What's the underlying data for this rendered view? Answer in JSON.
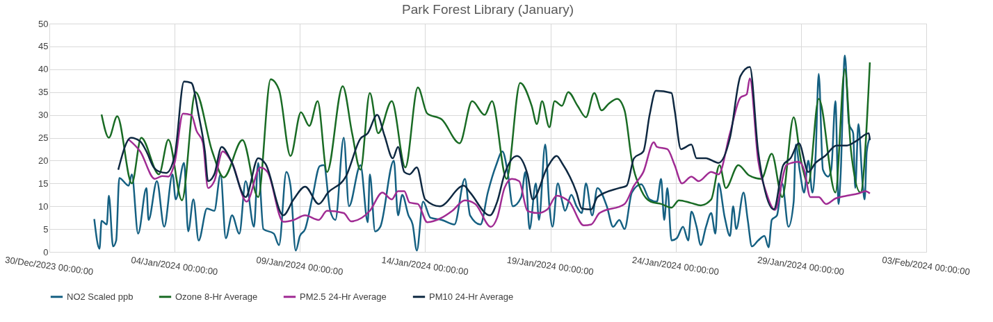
{
  "chart_data": {
    "type": "line",
    "title": "Park Forest Library (January)",
    "xlim": [
      "2023-12-30T00:00",
      "2024-02-03T00:00"
    ],
    "xticks": [
      {
        "value": "2023-12-30T00:00",
        "label": "30/Dec/2023 00:00:00"
      },
      {
        "value": "2024-01-04T00:00",
        "label": "04/Jan/2024 00:00:00"
      },
      {
        "value": "2024-01-09T00:00",
        "label": "09/Jan/2024 00:00:00"
      },
      {
        "value": "2024-01-14T00:00",
        "label": "14/Jan/2024 00:00:00"
      },
      {
        "value": "2024-01-19T00:00",
        "label": "19/Jan/2024 00:00:00"
      },
      {
        "value": "2024-01-24T00:00",
        "label": "24/Jan/2024 00:00:00"
      },
      {
        "value": "2024-01-29T00:00",
        "label": "29/Jan/2024 00:00:00"
      },
      {
        "value": "2024-02-03T00:00",
        "label": "03/Feb/2024 00:00:00"
      }
    ],
    "ylim": [
      0,
      50
    ],
    "yticks": [
      0,
      5,
      10,
      15,
      20,
      25,
      30,
      35,
      40,
      45,
      50
    ],
    "grid": true,
    "legend": "bottom",
    "marker": "none",
    "line_style": "solid",
    "series": [
      {
        "name": "NO2 Scaled ppb",
        "color": "#156082",
        "x": [
          "2023-12-31T19:00",
          "2024-01-01T00:00",
          "2024-01-01T02:00",
          "2024-01-01T07:00",
          "2024-01-01T09:00",
          "2024-01-01T13:00",
          "2024-01-01T16:00",
          "2024-01-01T19:00",
          "2024-01-02T04:00",
          "2024-01-02T07:00",
          "2024-01-02T13:00",
          "2024-01-02T21:00",
          "2024-01-02T23:00",
          "2024-01-03T07:00",
          "2024-01-03T14:00",
          "2024-01-03T22:00",
          "2024-01-04T01:00",
          "2024-01-04T09:00",
          "2024-01-04T13:00",
          "2024-01-04T18:00",
          "2024-01-04T23:00",
          "2024-01-05T07:00",
          "2024-01-05T14:00",
          "2024-01-05T20:00",
          "2024-01-06T01:00",
          "2024-01-06T07:00",
          "2024-01-06T14:00",
          "2024-01-06T20:00",
          "2024-01-07T04:00",
          "2024-01-07T08:00",
          "2024-01-07T13:00",
          "2024-01-07T23:00",
          "2024-01-08T04:00",
          "2024-01-08T11:00",
          "2024-01-08T15:00",
          "2024-01-08T20:00",
          "2024-01-09T00:00",
          "2024-01-09T05:00",
          "2024-01-09T12:00",
          "2024-01-09T19:00",
          "2024-01-09T23:00",
          "2024-01-10T05:00",
          "2024-01-10T10:00",
          "2024-01-10T18:00",
          "2024-01-10T23:00",
          "2024-01-11T10:00",
          "2024-01-11T17:00",
          "2024-01-11T19:00",
          "2024-01-12T00:00",
          "2024-01-12T05:00",
          "2024-01-12T18:00",
          "2024-01-12T22:00",
          "2024-01-13T02:00",
          "2024-01-13T08:00",
          "2024-01-13T12:00",
          "2024-01-13T16:00",
          "2024-01-13T22:00",
          "2024-01-14T05:00",
          "2024-01-14T16:00",
          "2024-01-15T04:00",
          "2024-01-15T14:00",
          "2024-01-15T19:00",
          "2024-01-16T05:00",
          "2024-01-16T12:00",
          "2024-01-16T20:00",
          "2024-01-17T02:00",
          "2024-01-17T07:00",
          "2024-01-17T12:00",
          "2024-01-17T20:00",
          "2024-01-18T00:00",
          "2024-01-18T04:00",
          "2024-01-18T10:00",
          "2024-01-18T13:00",
          "2024-01-18T19:00",
          "2024-01-18T23:00",
          "2024-01-19T02:00",
          "2024-01-19T07:00",
          "2024-01-19T11:00",
          "2024-01-19T14:00",
          "2024-01-19T20:00",
          "2024-01-20T01:00",
          "2024-01-20T06:00",
          "2024-01-20T10:00",
          "2024-01-20T16:00",
          "2024-01-20T21:00",
          "2024-01-21T06:00",
          "2024-01-21T12:00",
          "2024-01-21T18:00",
          "2024-01-21T23:00",
          "2024-01-22T06:00",
          "2024-01-22T15:00",
          "2024-01-22T23:00",
          "2024-01-23T06:00",
          "2024-01-23T10:00",
          "2024-01-23T13:00",
          "2024-01-23T16:00",
          "2024-01-23T20:00",
          "2024-01-24T01:00",
          "2024-01-24T07:00",
          "2024-01-24T12:00",
          "2024-01-24T15:00",
          "2024-01-24T20:00",
          "2024-01-25T00:00",
          "2024-01-25T05:00",
          "2024-01-25T10:00",
          "2024-01-25T14:00",
          "2024-01-25T17:00",
          "2024-01-25T23:00",
          "2024-01-26T04:00",
          "2024-01-26T07:00",
          "2024-01-26T10:00",
          "2024-01-26T17:00",
          "2024-01-26T21:00",
          "2024-01-27T01:00",
          "2024-01-27T07:00",
          "2024-01-27T13:00",
          "2024-01-27T17:00",
          "2024-01-27T20:00",
          "2024-01-28T01:00",
          "2024-01-28T06:00",
          "2024-01-28T12:00",
          "2024-01-28T17:00",
          "2024-01-28T19:00",
          "2024-01-28T23:00",
          "2024-01-29T03:00",
          "2024-01-29T07:00",
          "2024-01-29T11:00",
          "2024-01-29T14:00",
          "2024-01-29T17:00",
          "2024-01-29T21:00",
          "2024-01-30T02:00",
          "2024-01-30T05:00",
          "2024-01-30T09:00",
          "2024-01-30T12:00",
          "2024-01-30T14:00",
          "2024-01-30T18:00",
          "2024-01-30T22:00",
          "2024-01-31T02:00",
          "2024-01-31T04:00",
          "2024-01-31T07:00",
          "2024-01-31T11:00",
          "2024-01-31T13:00",
          "2024-01-31T15:00",
          "2024-01-31T18:00"
        ],
        "values": [
          7.2,
          0.7,
          6.8,
          6,
          12.3,
          1.2,
          2.5,
          16.2,
          14.5,
          17,
          4,
          14,
          7,
          15.5,
          5.5,
          17,
          11.5,
          19.5,
          4.5,
          11.5,
          2.5,
          9.5,
          9,
          17,
          3,
          8,
          4,
          15.5,
          5.5,
          19.5,
          5,
          4,
          1.5,
          17.5,
          14.5,
          0.3,
          3.5,
          5,
          12,
          18.8,
          19,
          9,
          7,
          25,
          10,
          19,
          6.5,
          17,
          4.5,
          5.5,
          20,
          8,
          12.5,
          8,
          6,
          0.3,
          11,
          7.5,
          7,
          6,
          16,
          8,
          6,
          13,
          19,
          22,
          17.5,
          10,
          12,
          17.5,
          5,
          15,
          7,
          23.5,
          10,
          5.5,
          15,
          11.3,
          9,
          12.5,
          10,
          8.5,
          15,
          8,
          14,
          10,
          5.5,
          7,
          5,
          13,
          14.8,
          11.5,
          11,
          16,
          7,
          14,
          2.5,
          3,
          5.5,
          2.5,
          8.8,
          5.5,
          1.5,
          5.5,
          8.5,
          4,
          15,
          7.5,
          3.5,
          10,
          5,
          13,
          7,
          1.2,
          2.5,
          3.5,
          1,
          7,
          8,
          15,
          5.5,
          11,
          23.5,
          17.5,
          13,
          20,
          13,
          21,
          39,
          18,
          16.5,
          18,
          33,
          10.5,
          17,
          43,
          28,
          26,
          14,
          28,
          15,
          11.5,
          22,
          25
        ]
      },
      {
        "name": "Ozone 8-Hr Average",
        "color": "#196b24",
        "x": [
          "2024-01-01T02:00",
          "2024-01-01T09:00",
          "2024-01-01T17:00",
          "2024-01-02T07:00",
          "2024-01-02T16:00",
          "2024-01-03T09:00",
          "2024-01-03T18:00",
          "2024-01-04T07:00",
          "2024-01-04T20:00",
          "2024-01-05T12:00",
          "2024-01-05T23:00",
          "2024-01-06T17:00",
          "2024-01-07T08:00",
          "2024-01-07T20:00",
          "2024-01-08T04:00",
          "2024-01-08T15:00",
          "2024-01-09T01:00",
          "2024-01-09T09:00",
          "2024-01-09T17:00",
          "2024-01-10T02:00",
          "2024-01-10T17:00",
          "2024-01-11T02:00",
          "2024-01-11T10:00",
          "2024-01-11T19:00",
          "2024-01-12T03:00",
          "2024-01-12T16:00",
          "2024-01-13T05:00",
          "2024-01-13T17:00",
          "2024-01-14T02:00",
          "2024-01-14T16:00",
          "2024-01-15T09:00",
          "2024-01-15T21:00",
          "2024-01-16T09:00",
          "2024-01-16T16:00",
          "2024-01-17T06:00",
          "2024-01-17T19:00",
          "2024-01-18T06:00",
          "2024-01-18T11:00",
          "2024-01-18T16:00",
          "2024-01-18T23:00",
          "2024-01-19T04:00",
          "2024-01-19T11:00",
          "2024-01-19T17:00",
          "2024-01-20T02:00",
          "2024-01-20T10:00",
          "2024-01-20T18:00",
          "2024-01-21T01:00",
          "2024-01-21T08:00",
          "2024-01-21T16:00",
          "2024-01-21T23:00",
          "2024-01-22T06:00",
          "2024-01-22T15:00",
          "2024-01-23T00:00",
          "2024-01-23T10:00",
          "2024-01-23T20:00",
          "2024-01-24T03:00",
          "2024-01-24T15:00",
          "2024-01-25T00:00",
          "2024-01-25T10:00",
          "2024-01-25T18:00",
          "2024-01-26T00:00",
          "2024-01-26T12:00",
          "2024-01-26T22:00",
          "2024-01-27T10:00",
          "2024-01-27T20:00",
          "2024-01-28T06:00",
          "2024-01-28T17:00",
          "2024-01-29T00:00",
          "2024-01-29T07:00",
          "2024-01-29T17:00",
          "2024-01-30T09:00",
          "2024-01-30T18:00",
          "2024-01-31T00:00",
          "2024-01-31T09:00",
          "2024-01-31T18:00"
        ],
        "values": [
          30.1,
          25,
          29.7,
          15,
          25,
          17,
          24.6,
          11.3,
          35,
          22,
          16.3,
          24.5,
          12,
          37.8,
          35.5,
          21,
          30.6,
          27.6,
          33,
          17.5,
          36.3,
          26,
          18,
          34.8,
          26,
          33,
          18.5,
          36,
          30.3,
          29,
          23.8,
          33,
          30,
          33,
          16,
          37,
          32,
          28,
          33,
          27.3,
          33,
          32,
          35,
          32,
          29.5,
          34.8,
          31,
          32.5,
          33.5,
          31,
          20,
          13.5,
          11,
          10.5,
          9.7,
          11.3,
          10.7,
          10.2,
          11.5,
          19,
          14,
          19,
          16.8,
          16,
          21.5,
          12,
          29.5,
          20,
          15,
          33.5,
          13,
          40,
          22,
          13,
          41.5
        ]
      },
      {
        "name": "PM2.5 24-Hr Average",
        "color": "#a02b93",
        "x": [
          "2024-01-02T04:00",
          "2024-01-02T15:00",
          "2024-01-03T05:00",
          "2024-01-03T12:00",
          "2024-01-03T18:00",
          "2024-01-04T00:00",
          "2024-01-04T08:00",
          "2024-01-04T16:00",
          "2024-01-04T21:00",
          "2024-01-05T03:00",
          "2024-01-05T08:00",
          "2024-01-05T14:00",
          "2024-01-05T22:00",
          "2024-01-06T07:00",
          "2024-01-06T21:00",
          "2024-01-07T10:00",
          "2024-01-07T17:00",
          "2024-01-08T08:00",
          "2024-01-08T18:00",
          "2024-01-09T05:00",
          "2024-01-09T18:00",
          "2024-01-10T02:00",
          "2024-01-10T18:00",
          "2024-01-11T01:00",
          "2024-01-11T19:00",
          "2024-01-12T07:00",
          "2024-01-12T16:00",
          "2024-01-12T22:00",
          "2024-01-13T04:00",
          "2024-01-13T09:00",
          "2024-01-13T17:00",
          "2024-01-14T02:00",
          "2024-01-14T16:00",
          "2024-01-15T02:00",
          "2024-01-15T14:00",
          "2024-01-16T00:00",
          "2024-01-16T15:00",
          "2024-01-16T21:00",
          "2024-01-17T04:00",
          "2024-01-17T11:00",
          "2024-01-17T18:00",
          "2024-01-18T02:00",
          "2024-01-18T12:00",
          "2024-01-18T21:00",
          "2024-01-19T06:00",
          "2024-01-19T13:00",
          "2024-01-19T18:00",
          "2024-01-20T08:00",
          "2024-01-20T15:00",
          "2024-01-20T23:00",
          "2024-01-21T23:00",
          "2024-01-22T08:00",
          "2024-01-22T17:00",
          "2024-01-23T03:00",
          "2024-01-23T06:00",
          "2024-01-23T16:00",
          "2024-01-23T23:00",
          "2024-01-24T06:00",
          "2024-01-24T15:00",
          "2024-01-24T22:00",
          "2024-01-25T10:00",
          "2024-01-25T17:00",
          "2024-01-26T04:00",
          "2024-01-26T14:00",
          "2024-01-26T20:00",
          "2024-01-26T23:00",
          "2024-01-27T07:00",
          "2024-01-27T14:00",
          "2024-01-27T23:00",
          "2024-01-28T10:00",
          "2024-01-28T15:00",
          "2024-01-28T22:00",
          "2024-01-29T03:00",
          "2024-01-29T09:00",
          "2024-01-29T17:00",
          "2024-01-30T00:00",
          "2024-01-30T09:00",
          "2024-01-30T20:00",
          "2024-01-31T07:00",
          "2024-01-31T14:00",
          "2024-01-31T18:00"
        ],
        "values": [
          24.6,
          22,
          16,
          16.6,
          16.5,
          19.5,
          30.3,
          30,
          26.5,
          24,
          14,
          15.5,
          22,
          19.5,
          11,
          18.5,
          17.5,
          6.6,
          7,
          8,
          7,
          9,
          8.5,
          6.7,
          9,
          13,
          11.5,
          13.3,
          13.3,
          10.8,
          10.5,
          6.5,
          7.5,
          9,
          11.3,
          10.5,
          5.5,
          7.5,
          14,
          16,
          15.5,
          9,
          8.5,
          9.3,
          12.3,
          11.8,
          11,
          5.8,
          6,
          8.5,
          10.5,
          14.5,
          17.5,
          24,
          23,
          22.5,
          19,
          15,
          16.5,
          15.5,
          17.5,
          17,
          26,
          33.8,
          34.5,
          38,
          20,
          13.5,
          9.2,
          19,
          19.5,
          19.7,
          18,
          12,
          12,
          10.5,
          11.7,
          12.3,
          12.8,
          13.3,
          12.8
        ]
      },
      {
        "name": "PM10 24-Hr Average",
        "color": "#0e2841",
        "x": [
          "2024-01-01T18:00",
          "2024-01-02T06:00",
          "2024-01-02T15:00",
          "2024-01-02T21:00",
          "2024-01-03T04:00",
          "2024-01-03T09:00",
          "2024-01-03T16:00",
          "2024-01-04T00:00",
          "2024-01-04T09:00",
          "2024-01-04T16:00",
          "2024-01-04T23:00",
          "2024-01-05T05:00",
          "2024-01-05T08:00",
          "2024-01-05T14:00",
          "2024-01-05T21:00",
          "2024-01-06T06:00",
          "2024-01-06T20:00",
          "2024-01-07T08:00",
          "2024-01-07T15:00",
          "2024-01-08T08:00",
          "2024-01-08T18:00",
          "2024-01-09T05:00",
          "2024-01-09T18:00",
          "2024-01-10T03:00",
          "2024-01-10T20:00",
          "2024-01-11T10:00",
          "2024-01-11T17:00",
          "2024-01-12T02:00",
          "2024-01-12T09:00",
          "2024-01-12T17:00",
          "2024-01-12T22:00",
          "2024-01-13T04:00",
          "2024-01-13T09:00",
          "2024-01-13T16:00",
          "2024-01-14T00:00",
          "2024-01-14T14:00",
          "2024-01-15T13:00",
          "2024-01-15T19:00",
          "2024-01-16T14:00",
          "2024-01-16T21:00",
          "2024-01-17T04:00",
          "2024-01-17T16:00",
          "2024-01-18T02:00",
          "2024-01-18T07:00",
          "2024-01-18T21:00",
          "2024-01-19T06:00",
          "2024-01-19T11:00",
          "2024-01-20T01:00",
          "2024-01-20T06:00",
          "2024-01-20T15:00",
          "2024-01-20T21:00",
          "2024-01-21T18:00",
          "2024-01-22T01:00",
          "2024-01-22T08:00",
          "2024-01-22T17:00",
          "2024-01-22T23:00",
          "2024-01-23T05:00",
          "2024-01-23T20:00",
          "2024-01-23T23:00",
          "2024-01-24T05:00",
          "2024-01-24T15:00",
          "2024-01-24T20:00",
          "2024-01-25T05:00",
          "2024-01-25T17:00",
          "2024-01-26T04:00",
          "2024-01-26T14:00",
          "2024-01-26T23:00",
          "2024-01-27T07:00",
          "2024-01-27T22:00",
          "2024-01-28T07:00",
          "2024-01-28T14:00",
          "2024-01-28T22:00",
          "2024-01-29T07:00",
          "2024-01-29T14:00",
          "2024-01-29T23:00",
          "2024-01-30T10:00",
          "2024-01-30T20:00",
          "2024-01-31T05:00",
          "2024-01-31T17:00",
          "2024-01-31T18:00"
        ],
        "values": [
          18,
          25,
          24.2,
          22,
          18.5,
          17.6,
          17.3,
          21,
          37.3,
          37,
          30,
          22,
          15.5,
          17,
          23,
          20,
          12,
          20.5,
          19.3,
          8,
          11.5,
          14.3,
          10.5,
          13,
          16.5,
          24.8,
          26,
          30,
          25.5,
          20.5,
          23,
          17.5,
          17,
          18.5,
          11.5,
          10,
          14.5,
          13,
          8,
          11,
          17,
          21,
          17,
          11.5,
          18.5,
          21,
          19.5,
          13,
          9.5,
          9.3,
          12,
          14,
          14.5,
          20.5,
          22,
          30,
          35.3,
          34.8,
          31,
          22.5,
          23.5,
          20.5,
          20.5,
          19.5,
          25,
          38.5,
          40.5,
          22,
          9.3,
          19,
          20.5,
          23.8,
          17.5,
          19.5,
          21,
          23.3,
          23.3,
          24.3,
          26,
          24.5
        ]
      }
    ]
  }
}
